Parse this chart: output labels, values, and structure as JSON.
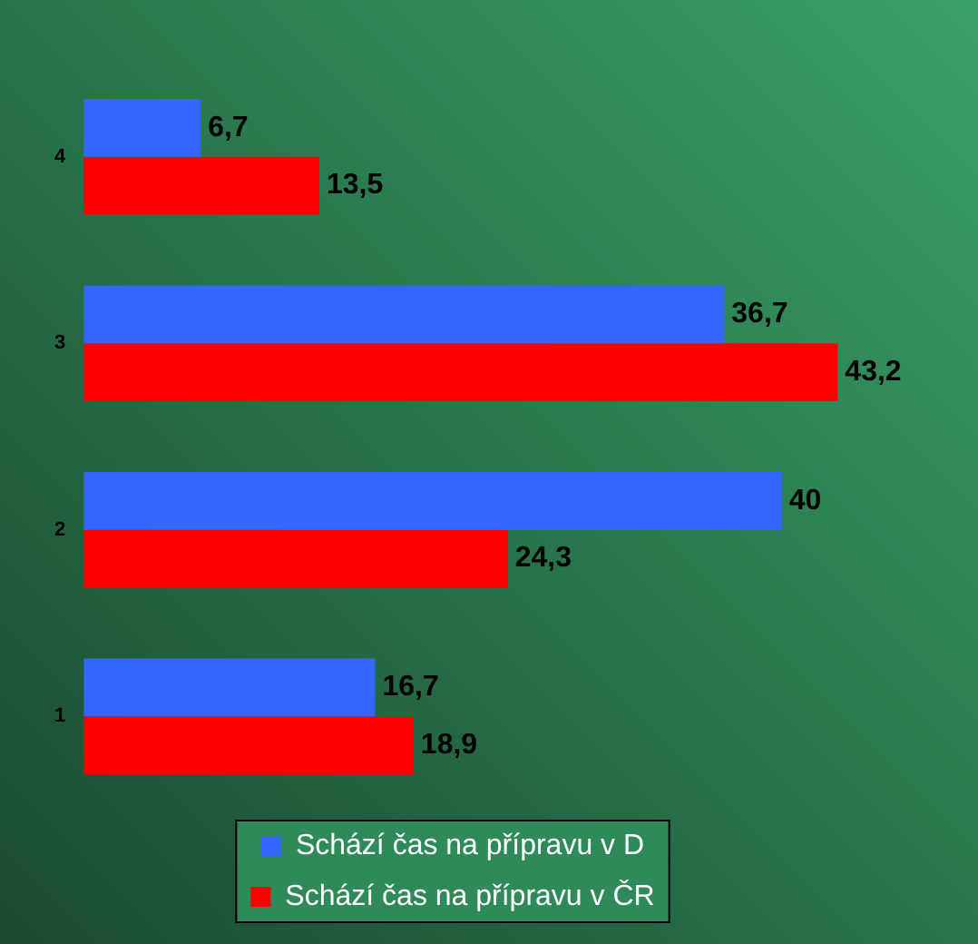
{
  "chart_data": {
    "type": "bar",
    "orientation": "horizontal",
    "categories": [
      "4",
      "3",
      "2",
      "1"
    ],
    "series": [
      {
        "name": "Schází čas na přípravu v D",
        "color": "#3366ff",
        "values": [
          6.7,
          36.7,
          40,
          16.7
        ],
        "value_labels": [
          "6,7",
          "36,7",
          "40",
          "16,7"
        ]
      },
      {
        "name": "Schází čas na přípravu v ČR",
        "color": "#ff0000",
        "values": [
          13.5,
          43.2,
          24.3,
          18.9
        ],
        "value_labels": [
          "13,5",
          "43,2",
          "24,3",
          "18,9"
        ]
      }
    ],
    "grid": false,
    "legend": "bottom",
    "tick_labels": "y"
  }
}
